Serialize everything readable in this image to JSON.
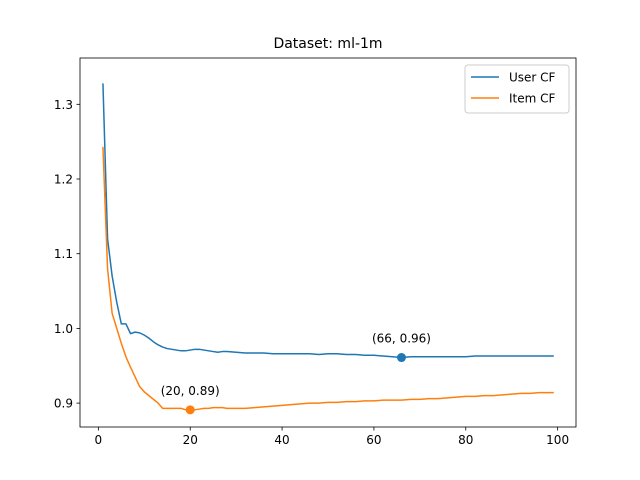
{
  "chart_data": {
    "type": "line",
    "title": "Dataset: ml-1m",
    "xlabel": "",
    "ylabel": "",
    "xlim": [
      -4.0,
      104.0
    ],
    "ylim": [
      0.868,
      1.362
    ],
    "x_ticks": [
      0,
      20,
      40,
      60,
      80,
      100
    ],
    "y_ticks": [
      0.9,
      1.0,
      1.1,
      1.2,
      1.3
    ],
    "x_tick_labels": [
      "0",
      "20",
      "40",
      "60",
      "80",
      "100"
    ],
    "y_tick_labels": [
      "0.9",
      "1.0",
      "1.1",
      "1.2",
      "1.3"
    ],
    "grid": false,
    "legend_position": "top-right",
    "series": [
      {
        "name": "User CF",
        "color": "#1f77b4",
        "points": [
          [
            1,
            1.327
          ],
          [
            2,
            1.12
          ],
          [
            3,
            1.07
          ],
          [
            4,
            1.035
          ],
          [
            5,
            1.006
          ],
          [
            6,
            1.006
          ],
          [
            7,
            0.993
          ],
          [
            8,
            0.995
          ],
          [
            9,
            0.994
          ],
          [
            10,
            0.991
          ],
          [
            11,
            0.987
          ],
          [
            12,
            0.982
          ],
          [
            13,
            0.978
          ],
          [
            14,
            0.975
          ],
          [
            15,
            0.973
          ],
          [
            16,
            0.972
          ],
          [
            17,
            0.971
          ],
          [
            18,
            0.97
          ],
          [
            19,
            0.97
          ],
          [
            20,
            0.971
          ],
          [
            21,
            0.972
          ],
          [
            22,
            0.972
          ],
          [
            23,
            0.971
          ],
          [
            24,
            0.97
          ],
          [
            25,
            0.969
          ],
          [
            26,
            0.968
          ],
          [
            27,
            0.969
          ],
          [
            28,
            0.969
          ],
          [
            30,
            0.968
          ],
          [
            32,
            0.967
          ],
          [
            34,
            0.967
          ],
          [
            36,
            0.967
          ],
          [
            38,
            0.966
          ],
          [
            40,
            0.966
          ],
          [
            42,
            0.966
          ],
          [
            44,
            0.966
          ],
          [
            46,
            0.966
          ],
          [
            48,
            0.965
          ],
          [
            50,
            0.966
          ],
          [
            52,
            0.966
          ],
          [
            54,
            0.965
          ],
          [
            56,
            0.965
          ],
          [
            58,
            0.964
          ],
          [
            60,
            0.964
          ],
          [
            62,
            0.963
          ],
          [
            64,
            0.962
          ],
          [
            66,
            0.961
          ],
          [
            68,
            0.962
          ],
          [
            70,
            0.962
          ],
          [
            72,
            0.962
          ],
          [
            74,
            0.962
          ],
          [
            76,
            0.962
          ],
          [
            78,
            0.962
          ],
          [
            80,
            0.962
          ],
          [
            82,
            0.963
          ],
          [
            84,
            0.963
          ],
          [
            86,
            0.963
          ],
          [
            88,
            0.963
          ],
          [
            90,
            0.963
          ],
          [
            92,
            0.963
          ],
          [
            94,
            0.963
          ],
          [
            96,
            0.963
          ],
          [
            98,
            0.963
          ],
          [
            99,
            0.963
          ]
        ]
      },
      {
        "name": "Item CF",
        "color": "#ff7f0e",
        "points": [
          [
            1,
            1.242
          ],
          [
            2,
            1.08
          ],
          [
            3,
            1.02
          ],
          [
            4,
            1.0
          ],
          [
            5,
            0.98
          ],
          [
            6,
            0.962
          ],
          [
            7,
            0.948
          ],
          [
            8,
            0.935
          ],
          [
            9,
            0.922
          ],
          [
            10,
            0.915
          ],
          [
            11,
            0.91
          ],
          [
            12,
            0.905
          ],
          [
            13,
            0.9
          ],
          [
            14,
            0.893
          ],
          [
            15,
            0.893
          ],
          [
            16,
            0.893
          ],
          [
            17,
            0.893
          ],
          [
            18,
            0.893
          ],
          [
            19,
            0.891
          ],
          [
            20,
            0.891
          ],
          [
            21,
            0.891
          ],
          [
            22,
            0.892
          ],
          [
            23,
            0.893
          ],
          [
            24,
            0.893
          ],
          [
            25,
            0.894
          ],
          [
            26,
            0.894
          ],
          [
            27,
            0.894
          ],
          [
            28,
            0.893
          ],
          [
            30,
            0.893
          ],
          [
            32,
            0.893
          ],
          [
            34,
            0.894
          ],
          [
            36,
            0.895
          ],
          [
            38,
            0.896
          ],
          [
            40,
            0.897
          ],
          [
            42,
            0.898
          ],
          [
            44,
            0.899
          ],
          [
            46,
            0.9
          ],
          [
            48,
            0.9
          ],
          [
            50,
            0.901
          ],
          [
            52,
            0.901
          ],
          [
            54,
            0.902
          ],
          [
            56,
            0.902
          ],
          [
            58,
            0.903
          ],
          [
            60,
            0.903
          ],
          [
            62,
            0.904
          ],
          [
            64,
            0.904
          ],
          [
            66,
            0.904
          ],
          [
            68,
            0.905
          ],
          [
            70,
            0.905
          ],
          [
            72,
            0.906
          ],
          [
            74,
            0.906
          ],
          [
            76,
            0.907
          ],
          [
            78,
            0.908
          ],
          [
            80,
            0.909
          ],
          [
            82,
            0.909
          ],
          [
            84,
            0.91
          ],
          [
            86,
            0.91
          ],
          [
            88,
            0.911
          ],
          [
            90,
            0.912
          ],
          [
            92,
            0.913
          ],
          [
            94,
            0.913
          ],
          [
            96,
            0.914
          ],
          [
            98,
            0.914
          ],
          [
            99,
            0.914
          ]
        ]
      }
    ],
    "highlights": [
      {
        "series": "User CF",
        "x": 66,
        "y": 0.961,
        "label": "(66, 0.96)",
        "color": "#1f77b4"
      },
      {
        "series": "Item CF",
        "x": 20,
        "y": 0.891,
        "label": "(20, 0.89)",
        "color": "#ff7f0e"
      }
    ]
  }
}
